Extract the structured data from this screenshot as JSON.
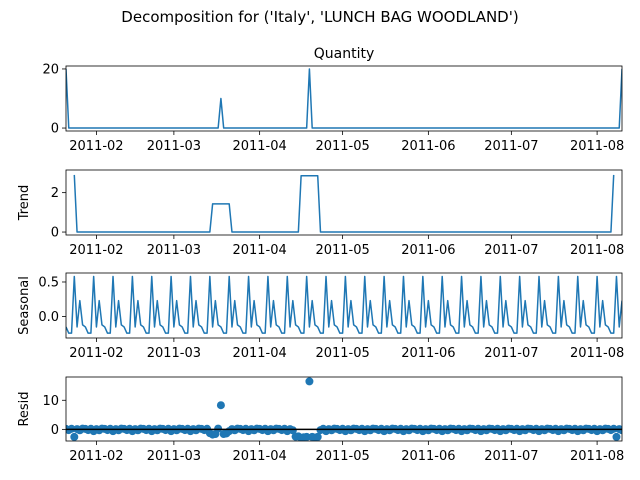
{
  "figure": {
    "suptitle": "Decomposition for ('Italy', 'LUNCH BAG WOODLAND')"
  },
  "colors": {
    "line": "#1f77b4",
    "axes": "#000000",
    "background": "#ffffff",
    "zero_line": "#000000"
  },
  "chart_data": [
    {
      "type": "line",
      "title": "Quantity",
      "ylabel": "",
      "xlim": [
        "2011-01-21",
        "2011-08-10"
      ],
      "ylim": [
        -1,
        21
      ],
      "yticks": [
        0,
        20
      ],
      "xticks": [
        "2011-02-01",
        "2011-03-01",
        "2011-04-01",
        "2011-05-01",
        "2011-06-01",
        "2011-07-01",
        "2011-08-01"
      ],
      "xticklabels": [
        "2011-02",
        "2011-03",
        "2011-04",
        "2011-05",
        "2011-06",
        "2011-07",
        "2011-08"
      ],
      "series": [
        {
          "points": [
            [
              "2011-01-21",
              20
            ],
            [
              "2011-01-22",
              0
            ],
            [
              "2011-03-17",
              0
            ],
            [
              "2011-03-18",
              10
            ],
            [
              "2011-03-19",
              0
            ],
            [
              "2011-04-18",
              0
            ],
            [
              "2011-04-19",
              20
            ],
            [
              "2011-04-20",
              0
            ],
            [
              "2011-08-09",
              0
            ],
            [
              "2011-08-10",
              20
            ]
          ]
        }
      ]
    },
    {
      "type": "line",
      "title": "",
      "ylabel": "Trend",
      "xlim": [
        "2011-01-21",
        "2011-08-10"
      ],
      "ylim": [
        -0.15,
        3.15
      ],
      "yticks": [
        0,
        2
      ],
      "xticks": [
        "2011-02-01",
        "2011-03-01",
        "2011-04-01",
        "2011-05-01",
        "2011-06-01",
        "2011-07-01",
        "2011-08-01"
      ],
      "xticklabels": [
        "2011-02",
        "2011-03",
        "2011-04",
        "2011-05",
        "2011-06",
        "2011-07",
        "2011-08"
      ],
      "series": [
        {
          "points": [
            [
              "2011-01-24",
              2.9
            ],
            [
              "2011-01-25",
              0
            ],
            [
              "2011-03-14",
              0
            ],
            [
              "2011-03-15",
              1.43
            ],
            [
              "2011-03-21",
              1.43
            ],
            [
              "2011-03-22",
              0
            ],
            [
              "2011-04-15",
              0
            ],
            [
              "2011-04-16",
              2.86
            ],
            [
              "2011-04-22",
              2.86
            ],
            [
              "2011-04-23",
              0
            ],
            [
              "2011-08-06",
              0
            ],
            [
              "2011-08-07",
              2.9
            ]
          ]
        }
      ]
    },
    {
      "type": "line",
      "title": "",
      "ylabel": "Seasonal",
      "xlim": [
        "2011-01-21",
        "2011-08-10"
      ],
      "ylim": [
        -0.31,
        0.63
      ],
      "yticks": [
        0.0,
        0.5
      ],
      "ytick_labels": [
        "0.0",
        "0.5"
      ],
      "xticks": [
        "2011-02-01",
        "2011-03-01",
        "2011-04-01",
        "2011-05-01",
        "2011-06-01",
        "2011-07-01",
        "2011-08-01"
      ],
      "xticklabels": [
        "2011-02",
        "2011-03",
        "2011-04",
        "2011-05",
        "2011-06",
        "2011-07",
        "2011-08"
      ],
      "period_days": 7,
      "pattern_start": "2011-01-21",
      "pattern": [
        -0.15,
        -0.24,
        -0.24,
        0.58,
        -0.15,
        0.23,
        -0.12
      ],
      "series": [
        {
          "pattern_ref": true
        }
      ]
    },
    {
      "type": "scatter",
      "title": "",
      "ylabel": "Resid",
      "xlim": [
        "2011-01-21",
        "2011-08-10"
      ],
      "ylim": [
        -4,
        18
      ],
      "yticks": [
        0,
        10
      ],
      "zero_line": true,
      "xticks": [
        "2011-02-01",
        "2011-03-01",
        "2011-04-01",
        "2011-05-01",
        "2011-06-01",
        "2011-07-01",
        "2011-08-01"
      ],
      "xticklabels": [
        "2011-02",
        "2011-03",
        "2011-04",
        "2011-05",
        "2011-06",
        "2011-07",
        "2011-08"
      ],
      "baseline_noise": [
        0.15,
        -0.25,
        0.2,
        -0.6,
        0.1,
        -0.3,
        0.25
      ],
      "outliers": [
        [
          "2011-01-24",
          -2.6
        ],
        [
          "2011-03-14",
          -1.3
        ],
        [
          "2011-03-15",
          -1.8
        ],
        [
          "2011-03-16",
          -1.6
        ],
        [
          "2011-03-18",
          8.3
        ],
        [
          "2011-03-19",
          -1.6
        ],
        [
          "2011-03-20",
          -1.4
        ],
        [
          "2011-04-14",
          -2.5
        ],
        [
          "2011-04-15",
          -2.4
        ],
        [
          "2011-04-16",
          -2.9
        ],
        [
          "2011-04-17",
          -2.7
        ],
        [
          "2011-04-18",
          -2.6
        ],
        [
          "2011-04-19",
          16.5
        ],
        [
          "2011-04-20",
          -2.6
        ],
        [
          "2011-04-21",
          -2.8
        ],
        [
          "2011-04-22",
          -2.6
        ],
        [
          "2011-08-08",
          -2.6
        ]
      ],
      "series": [
        {
          "points_ref": true
        }
      ]
    }
  ]
}
